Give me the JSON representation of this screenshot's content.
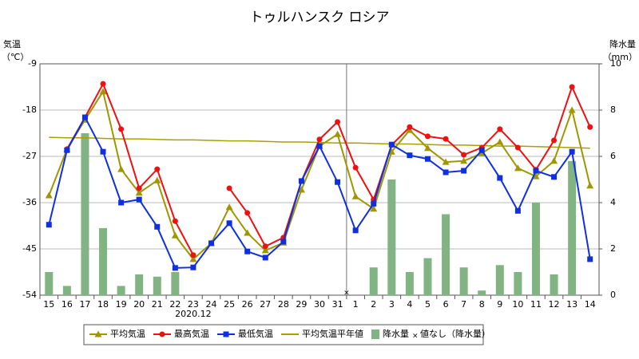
{
  "chart_data": {
    "type": "line_bar",
    "title": "トゥルハンスク ロシア",
    "y_label": "気温",
    "y_unit": "（℃）",
    "y2_label": "降水量",
    "y2_unit": "（mm）",
    "x_annotation": "2020.12",
    "categories": [
      "15",
      "16",
      "17",
      "18",
      "19",
      "20",
      "21",
      "22",
      "23",
      "24",
      "25",
      "26",
      "27",
      "28",
      "29",
      "30",
      "31",
      "1",
      "2",
      "3",
      "4",
      "5",
      "6",
      "7",
      "8",
      "9",
      "10",
      "11",
      "12",
      "13",
      "14"
    ],
    "ylim": [
      -54,
      -9
    ],
    "yticks": [
      -54,
      -45,
      -36,
      -27,
      -18,
      -9
    ],
    "y2lim": [
      0,
      10
    ],
    "y2ticks": [
      0,
      2,
      4,
      6,
      8,
      10
    ],
    "grid": true,
    "null_marker": "×",
    "null_note": "値なし（降水量）",
    "series": [
      {
        "name": "降水量",
        "kind": "bar",
        "axis": "y2",
        "color": "#82b382",
        "values": [
          1.0,
          0.4,
          7.0,
          2.9,
          0.4,
          0.9,
          0.8,
          1.0,
          0,
          0,
          0,
          0,
          0,
          0,
          0,
          0,
          0,
          null,
          1.2,
          5.0,
          1.0,
          1.6,
          3.5,
          1.2,
          0.2,
          1.3,
          1.0,
          4.0,
          0.9,
          5.8,
          0
        ]
      },
      {
        "name": "平均気温平年値",
        "kind": "line",
        "color": "#a8a000",
        "values": [
          -23.3,
          -23.4,
          -23.4,
          -23.5,
          -23.6,
          -23.6,
          -23.7,
          -23.8,
          -23.8,
          -23.9,
          -24.0,
          -24.0,
          -24.1,
          -24.2,
          -24.2,
          -24.3,
          -24.4,
          -24.4,
          -24.5,
          -24.6,
          -24.6,
          -24.7,
          -24.8,
          -24.8,
          -24.9,
          -25.0,
          -25.0,
          -25.1,
          -25.2,
          -25.3,
          -25.4
        ]
      },
      {
        "name": "平均気温",
        "kind": "line",
        "marker": "triangle",
        "color": "#a09600",
        "values": [
          -34.6,
          -25.6,
          -19.9,
          -14.4,
          -29.5,
          -34.1,
          -31.7,
          -42.4,
          -47.0,
          -43.9,
          -36.9,
          -41.9,
          -45.3,
          -43.8,
          -33.5,
          -25.0,
          -22.7,
          -34.8,
          -37.2,
          -26.1,
          -21.9,
          -25.4,
          -28.1,
          -27.9,
          -26.4,
          -24.2,
          -29.3,
          -30.9,
          -27.9,
          -18.0,
          -32.7
        ]
      },
      {
        "name": "最高気温",
        "kind": "line",
        "marker": "circle",
        "color": "#ee1111",
        "values": [
          null,
          -25.6,
          -19.4,
          -12.9,
          -21.7,
          -33.2,
          -29.5,
          -39.6,
          -46.2,
          null,
          -33.2,
          -38.0,
          -44.5,
          -42.8,
          -31.8,
          -23.7,
          -20.3,
          -29.2,
          -35.4,
          -24.8,
          -21.3,
          -23.1,
          -23.6,
          -26.7,
          -25.3,
          -21.7,
          -25.3,
          -29.6,
          -23.9,
          -13.5,
          -21.3
        ]
      },
      {
        "name": "最低気温",
        "kind": "line",
        "marker": "square",
        "color": "#1030e0",
        "values": [
          -40.3,
          -25.8,
          -19.4,
          -26.1,
          -36.0,
          -35.4,
          -40.7,
          -48.7,
          -48.6,
          -43.9,
          -40.0,
          -45.5,
          -46.7,
          -43.6,
          -31.8,
          -25.0,
          -32.0,
          -41.4,
          -36.2,
          -24.7,
          -26.8,
          -27.5,
          -30.1,
          -29.8,
          -25.8,
          -31.2,
          -37.6,
          -29.8,
          -31.0,
          -26.1,
          -47.0
        ]
      }
    ]
  }
}
